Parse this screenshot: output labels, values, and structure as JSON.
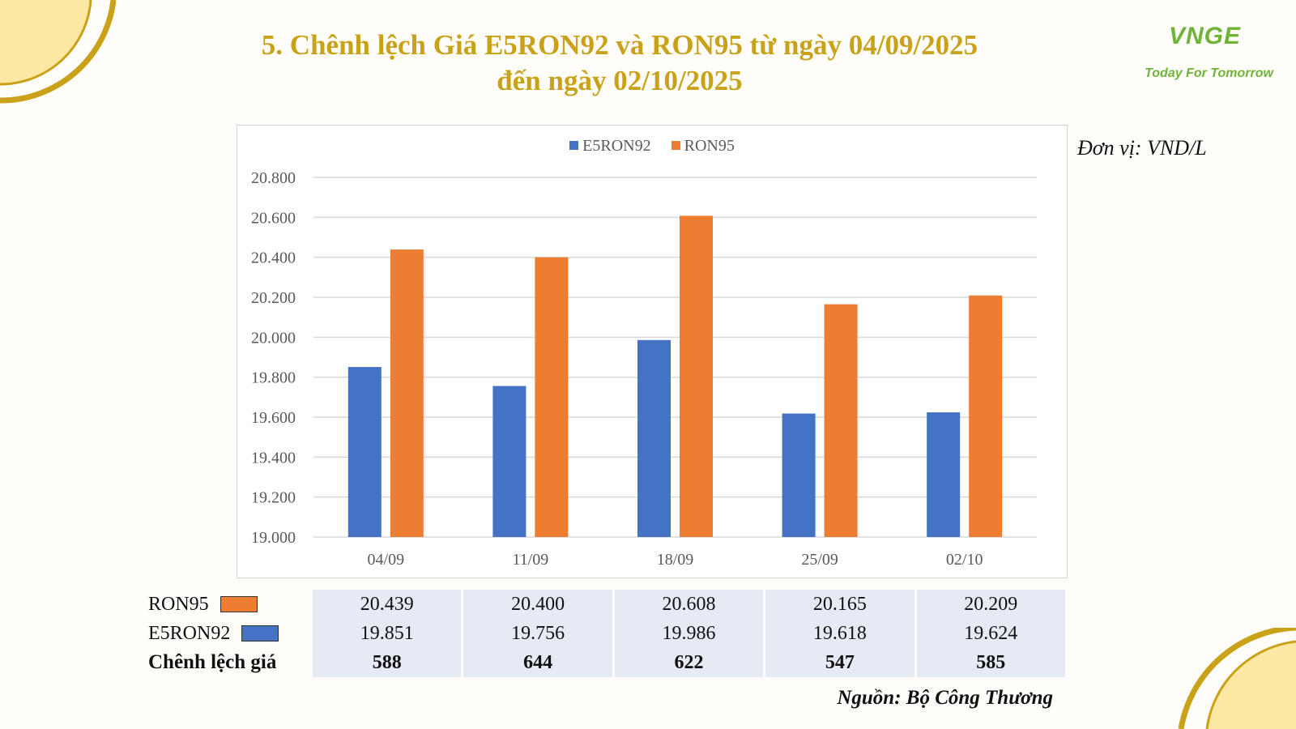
{
  "header": {
    "title_line1": "5. Chênh lệch Giá E5RON92 và RON95 từ ngày 04/09/2025",
    "title_line2": "đến ngày 02/10/2025"
  },
  "logo": {
    "mark": "VNGE",
    "tagline": "Today For Tomorrow"
  },
  "unit_label": "Đơn vị: VND/L",
  "source": "Nguồn: Bộ Công Thương",
  "colors": {
    "e5ron92": "#4472c4",
    "ron95": "#ed7d31",
    "title": "#c9a21a",
    "gold_corner": "#c9a21a",
    "corner_fill": "#fde9a4",
    "logo_green": "#6fb338"
  },
  "chart_data": {
    "type": "bar",
    "categories": [
      "04/09",
      "11/09",
      "18/09",
      "25/09",
      "02/10"
    ],
    "series": [
      {
        "name": "E5RON92",
        "values": [
          19851,
          19756,
          19986,
          19618,
          19624
        ]
      },
      {
        "name": "RON95",
        "values": [
          20439,
          20400,
          20608,
          20165,
          20209
        ]
      }
    ],
    "ylim": [
      19000,
      20800
    ],
    "yticks": [
      "19.000",
      "19.200",
      "19.400",
      "19.600",
      "19.800",
      "20.000",
      "20.200",
      "20.400",
      "20.600",
      "20.800"
    ],
    "ytick_values": [
      19000,
      19200,
      19400,
      19600,
      19800,
      20000,
      20200,
      20400,
      20600,
      20800
    ],
    "grid": true,
    "legend_position": "top-center"
  },
  "table": {
    "rows": [
      {
        "label": "RON95",
        "values": [
          "20.439",
          "20.400",
          "20.608",
          "20.165",
          "20.209"
        ]
      },
      {
        "label": "E5RON92",
        "values": [
          "19.851",
          "19.756",
          "19.986",
          "19.618",
          "19.624"
        ]
      },
      {
        "label": "Chênh lệch giá",
        "values": [
          "588",
          "644",
          "622",
          "547",
          "585"
        ]
      }
    ]
  }
}
